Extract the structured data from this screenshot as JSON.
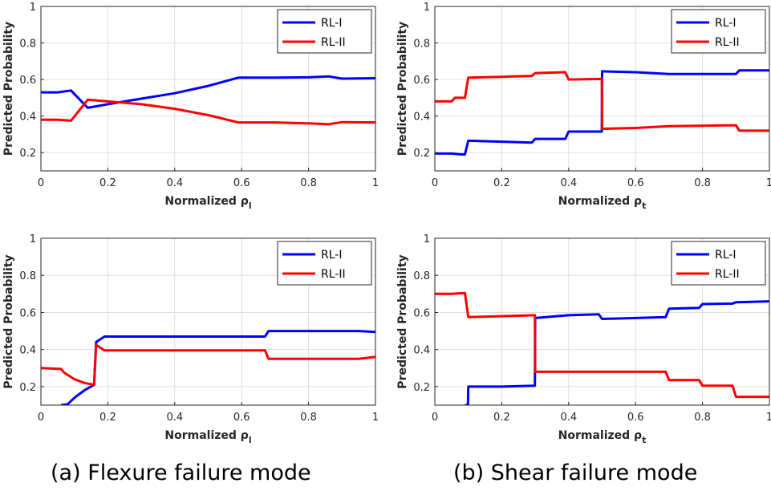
{
  "captions": {
    "a": "(a) Flexure failure mode",
    "b": "(b) Shear failure mode"
  },
  "colors": {
    "rl1": "#0000ff",
    "rl2": "#ff0000",
    "grid": "#dfdfdf",
    "axis": "#262626"
  },
  "chart_data": [
    {
      "id": "a-top",
      "type": "line",
      "xlabel": "Normalized ρl",
      "ylabel": "Predicted Probability",
      "xlim": [
        0,
        1
      ],
      "ylim": [
        0.1,
        1
      ],
      "xticks": [
        0,
        0.2,
        0.4,
        0.6,
        0.8,
        1
      ],
      "xtick_labels": [
        "0",
        "0.2",
        "0.4",
        "0.6",
        "0.8",
        "1"
      ],
      "yticks": [
        0.2,
        0.4,
        0.6,
        0.8,
        1
      ],
      "ytick_labels": [
        "0.2",
        "0.4",
        "0.6",
        "0.8",
        "1"
      ],
      "grid": true,
      "legend_position": "top-right",
      "series": [
        {
          "name": "RL-I",
          "color": "#0000ff",
          "points": [
            [
              0,
              0.53
            ],
            [
              0.05,
              0.53
            ],
            [
              0.09,
              0.54
            ],
            [
              0.14,
              0.445
            ],
            [
              0.2,
              0.465
            ],
            [
              0.3,
              0.495
            ],
            [
              0.4,
              0.525
            ],
            [
              0.5,
              0.565
            ],
            [
              0.59,
              0.61
            ],
            [
              0.7,
              0.61
            ],
            [
              0.8,
              0.612
            ],
            [
              0.86,
              0.617
            ],
            [
              0.9,
              0.605
            ],
            [
              1,
              0.607
            ]
          ]
        },
        {
          "name": "RL-II",
          "color": "#ff0000",
          "points": [
            [
              0,
              0.38
            ],
            [
              0.05,
              0.38
            ],
            [
              0.09,
              0.375
            ],
            [
              0.14,
              0.49
            ],
            [
              0.2,
              0.48
            ],
            [
              0.3,
              0.465
            ],
            [
              0.4,
              0.44
            ],
            [
              0.5,
              0.405
            ],
            [
              0.59,
              0.365
            ],
            [
              0.7,
              0.365
            ],
            [
              0.8,
              0.36
            ],
            [
              0.86,
              0.355
            ],
            [
              0.9,
              0.367
            ],
            [
              1,
              0.365
            ]
          ]
        }
      ]
    },
    {
      "id": "b-top",
      "type": "line",
      "xlabel": "Normalized ρt",
      "ylabel": "Predicted Probability",
      "xlim": [
        0,
        1
      ],
      "ylim": [
        0.1,
        1
      ],
      "xticks": [
        0,
        0.2,
        0.4,
        0.6,
        0.8,
        1
      ],
      "xtick_labels": [
        "0",
        "0.2",
        "0.4",
        "0.6",
        "0.8",
        "1"
      ],
      "yticks": [
        0.2,
        0.4,
        0.6,
        0.8,
        1
      ],
      "ytick_labels": [
        "0.2",
        "0.4",
        "0.6",
        "0.8",
        "1"
      ],
      "grid": true,
      "legend_position": "top-right",
      "series": [
        {
          "name": "RL-I",
          "color": "#0000ff",
          "points": [
            [
              0,
              0.195
            ],
            [
              0.05,
              0.195
            ],
            [
              0.08,
              0.19
            ],
            [
              0.09,
              0.19
            ],
            [
              0.1,
              0.265
            ],
            [
              0.2,
              0.26
            ],
            [
              0.29,
              0.255
            ],
            [
              0.3,
              0.275
            ],
            [
              0.39,
              0.275
            ],
            [
              0.4,
              0.315
            ],
            [
              0.499,
              0.315
            ],
            [
              0.5,
              0.645
            ],
            [
              0.6,
              0.64
            ],
            [
              0.7,
              0.63
            ],
            [
              0.9,
              0.63
            ],
            [
              0.91,
              0.65
            ],
            [
              1,
              0.65
            ]
          ]
        },
        {
          "name": "RL-II",
          "color": "#ff0000",
          "points": [
            [
              0,
              0.48
            ],
            [
              0.05,
              0.48
            ],
            [
              0.06,
              0.5
            ],
            [
              0.09,
              0.5
            ],
            [
              0.1,
              0.61
            ],
            [
              0.2,
              0.615
            ],
            [
              0.29,
              0.62
            ],
            [
              0.3,
              0.635
            ],
            [
              0.39,
              0.64
            ],
            [
              0.4,
              0.6
            ],
            [
              0.499,
              0.603
            ],
            [
              0.5,
              0.33
            ],
            [
              0.6,
              0.335
            ],
            [
              0.7,
              0.345
            ],
            [
              0.9,
              0.35
            ],
            [
              0.91,
              0.32
            ],
            [
              1,
              0.32
            ]
          ]
        }
      ]
    },
    {
      "id": "a-bottom",
      "type": "line",
      "xlabel": "Normalized ρl",
      "ylabel": "Predicted Probability",
      "xlim": [
        0,
        1
      ],
      "ylim": [
        0.1,
        1
      ],
      "xticks": [
        0,
        0.2,
        0.4,
        0.6,
        0.8,
        1
      ],
      "xtick_labels": [
        "0",
        "0.2",
        "0.4",
        "0.6",
        "0.8",
        "1"
      ],
      "yticks": [
        0.2,
        0.4,
        0.6,
        0.8,
        1
      ],
      "ytick_labels": [
        "0.2",
        "0.4",
        "0.6",
        "0.8",
        "1"
      ],
      "grid": true,
      "legend_position": "top-right",
      "series": [
        {
          "name": "RL-I",
          "color": "#0000ff",
          "points": [
            [
              0.06,
              0.1
            ],
            [
              0.08,
              0.105
            ],
            [
              0.1,
              0.14
            ],
            [
              0.13,
              0.18
            ],
            [
              0.159,
              0.21
            ],
            [
              0.165,
              0.44
            ],
            [
              0.19,
              0.47
            ],
            [
              0.3,
              0.47
            ],
            [
              0.5,
              0.47
            ],
            [
              0.67,
              0.47
            ],
            [
              0.68,
              0.5
            ],
            [
              0.8,
              0.5
            ],
            [
              0.95,
              0.5
            ],
            [
              1,
              0.495
            ]
          ]
        },
        {
          "name": "RL-II",
          "color": "#ff0000",
          "points": [
            [
              0,
              0.3
            ],
            [
              0.06,
              0.295
            ],
            [
              0.07,
              0.275
            ],
            [
              0.1,
              0.24
            ],
            [
              0.13,
              0.22
            ],
            [
              0.159,
              0.21
            ],
            [
              0.165,
              0.425
            ],
            [
              0.19,
              0.395
            ],
            [
              0.3,
              0.395
            ],
            [
              0.5,
              0.395
            ],
            [
              0.67,
              0.395
            ],
            [
              0.68,
              0.35
            ],
            [
              0.8,
              0.35
            ],
            [
              0.95,
              0.35
            ],
            [
              1,
              0.36
            ]
          ]
        }
      ]
    },
    {
      "id": "b-bottom",
      "type": "line",
      "xlabel": "Normalized ρt",
      "ylabel": "Predicted Probability",
      "xlim": [
        0,
        1
      ],
      "ylim": [
        0.1,
        1
      ],
      "xticks": [
        0,
        0.2,
        0.4,
        0.6,
        0.8,
        1
      ],
      "xtick_labels": [
        "0",
        "0.2",
        "0.4",
        "0.6",
        "0.8",
        "1"
      ],
      "yticks": [
        0.2,
        0.4,
        0.6,
        0.8,
        1
      ],
      "ytick_labels": [
        "0.2",
        "0.4",
        "0.6",
        "0.8",
        "1"
      ],
      "grid": true,
      "legend_position": "top-right",
      "series": [
        {
          "name": "RL-I",
          "color": "#0000ff",
          "points": [
            [
              0.09,
              0.1
            ],
            [
              0.099,
              0.1
            ],
            [
              0.1,
              0.2
            ],
            [
              0.2,
              0.2
            ],
            [
              0.299,
              0.205
            ],
            [
              0.3,
              0.57
            ],
            [
              0.4,
              0.585
            ],
            [
              0.49,
              0.59
            ],
            [
              0.5,
              0.565
            ],
            [
              0.6,
              0.57
            ],
            [
              0.69,
              0.575
            ],
            [
              0.7,
              0.62
            ],
            [
              0.79,
              0.625
            ],
            [
              0.8,
              0.645
            ],
            [
              0.89,
              0.648
            ],
            [
              0.9,
              0.655
            ],
            [
              1,
              0.66
            ]
          ]
        },
        {
          "name": "RL-II",
          "color": "#ff0000",
          "points": [
            [
              0,
              0.7
            ],
            [
              0.05,
              0.7
            ],
            [
              0.09,
              0.705
            ],
            [
              0.1,
              0.575
            ],
            [
              0.2,
              0.58
            ],
            [
              0.299,
              0.585
            ],
            [
              0.3,
              0.28
            ],
            [
              0.4,
              0.28
            ],
            [
              0.5,
              0.28
            ],
            [
              0.6,
              0.28
            ],
            [
              0.69,
              0.28
            ],
            [
              0.7,
              0.235
            ],
            [
              0.79,
              0.235
            ],
            [
              0.8,
              0.205
            ],
            [
              0.89,
              0.205
            ],
            [
              0.9,
              0.145
            ],
            [
              1,
              0.145
            ]
          ]
        }
      ]
    }
  ]
}
